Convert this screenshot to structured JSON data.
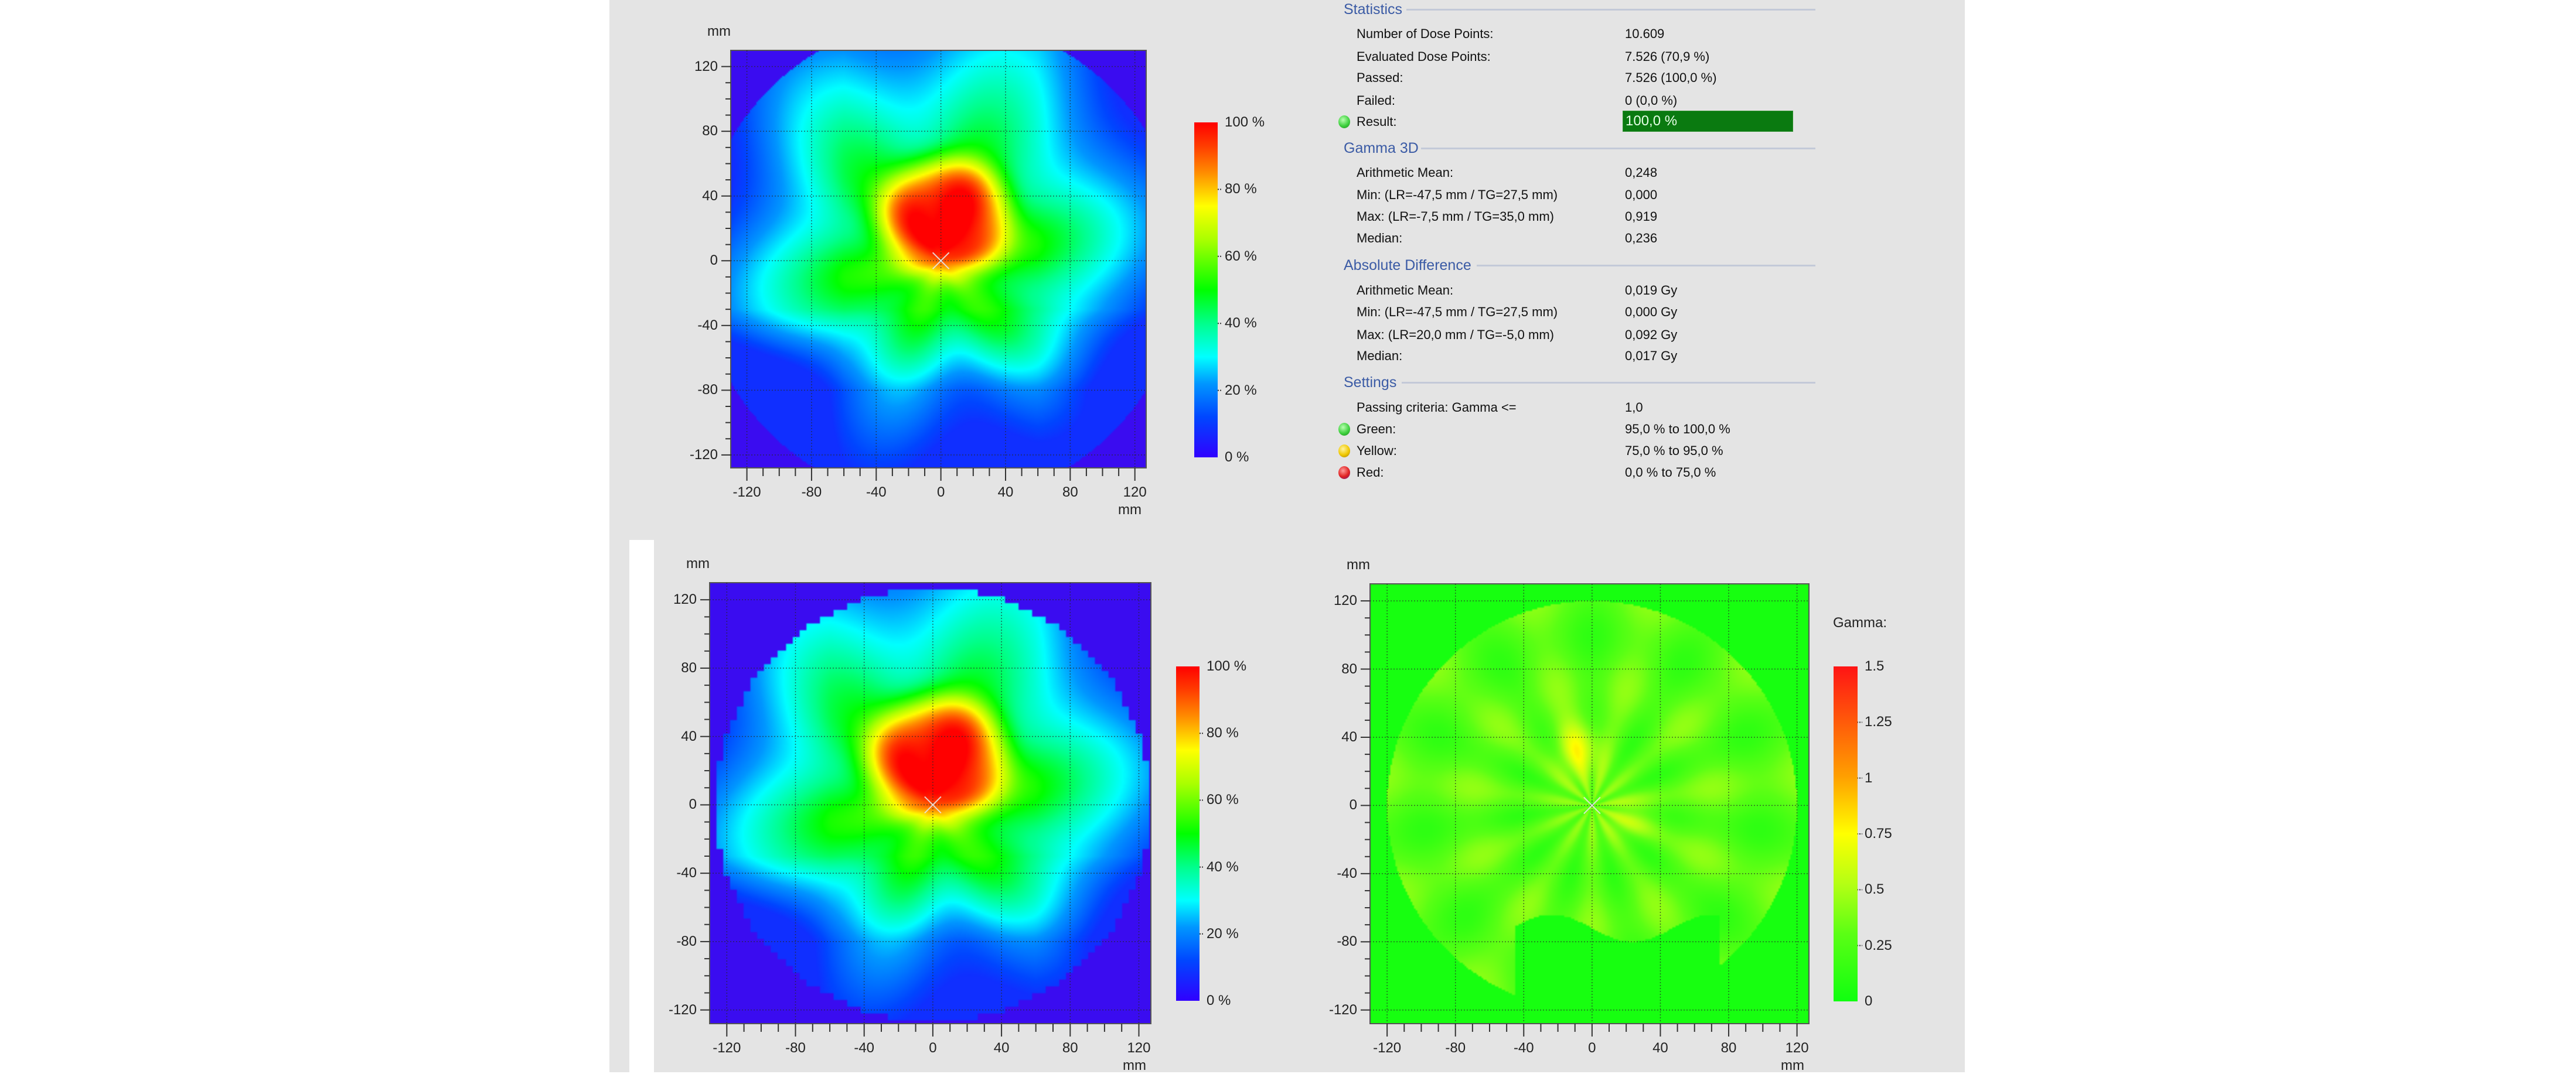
{
  "statistics": {
    "title": "Statistics",
    "rows": [
      {
        "label": "Number of Dose Points:",
        "value": "10.609"
      },
      {
        "label": "Evaluated Dose Points:",
        "value": "7.526 (70,9 %)"
      },
      {
        "label": "Passed:",
        "value": "7.526 (100,0 %)"
      },
      {
        "label": "Failed:",
        "value": "0 (0,0 %)"
      }
    ],
    "result": {
      "label": "Result:",
      "value": "100,0 %",
      "indicator": "green"
    }
  },
  "gamma3d": {
    "title": "Gamma 3D",
    "rows": [
      {
        "label": "Arithmetic Mean:",
        "value": "0,248"
      },
      {
        "label": "Min: (LR=-47,5 mm / TG=27,5 mm)",
        "value": "0,000"
      },
      {
        "label": "Max: (LR=-7,5 mm / TG=35,0 mm)",
        "value": "0,919"
      },
      {
        "label": "Median:",
        "value": "0,236"
      }
    ]
  },
  "absolute_difference": {
    "title": "Absolute Difference",
    "rows": [
      {
        "label": "Arithmetic Mean:",
        "value": "0,019 Gy"
      },
      {
        "label": "Min: (LR=-47,5 mm / TG=27,5 mm)",
        "value": "0,000 Gy"
      },
      {
        "label": "Max: (LR=20,0 mm / TG=-5,0 mm)",
        "value": "0,092 Gy"
      },
      {
        "label": "Median:",
        "value": "0,017 Gy"
      }
    ]
  },
  "settings": {
    "title": "Settings",
    "rows": [
      {
        "label": "Passing criteria: Gamma <=",
        "value": "1,0"
      },
      {
        "label": "Green:",
        "value": "95,0 % to 100,0 %",
        "indicator": "green"
      },
      {
        "label": "Yellow:",
        "value": "75,0 % to 95,0 %",
        "indicator": "yellow"
      },
      {
        "label": "Red:",
        "value": "0,0 % to 75,0 %",
        "indicator": "red"
      }
    ]
  },
  "plots": {
    "axis_unit": "mm",
    "x_ticks": [
      "-120",
      "-80",
      "-40",
      "0",
      "40",
      "80",
      "120"
    ],
    "y_ticks": [
      "120",
      "80",
      "40",
      "0",
      "-40",
      "-80",
      "-120"
    ],
    "dose_colorbar": {
      "labels": [
        "100 %",
        "80 %",
        "60 %",
        "40 %",
        "20 %",
        "0 %"
      ],
      "values": [
        100,
        80,
        60,
        40,
        20,
        0
      ]
    },
    "gamma_colorbar": {
      "title": "Gamma:",
      "labels": [
        "1.5",
        "1.25",
        "1",
        "0.75",
        "0.5",
        "0.25",
        "0"
      ],
      "values": [
        1.5,
        1.25,
        1,
        0.75,
        0.5,
        0.25,
        0
      ]
    }
  },
  "colors": {
    "panel_bg": "#e4e4e4",
    "section_title": "#3b5ba5",
    "result_bar": "#0a7a10",
    "indicator_green": "#3fd13f",
    "indicator_yellow": "#f0c800",
    "indicator_red": "#e02020"
  }
}
